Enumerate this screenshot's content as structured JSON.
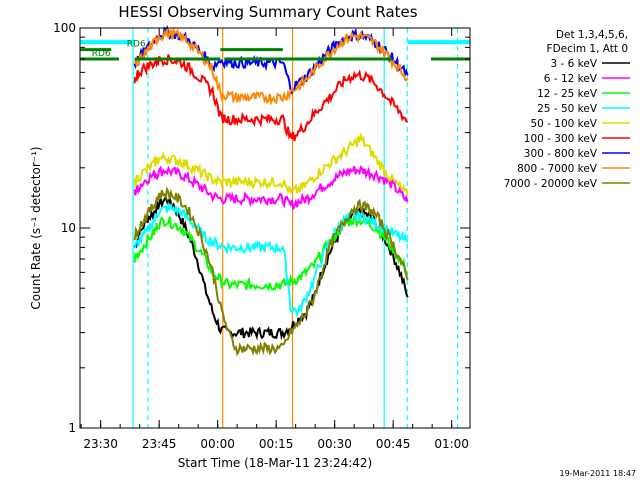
{
  "chart_data": {
    "type": "line",
    "title": "HESSI Observing Summary Count Rates",
    "xlabel": "Start Time (18-Mar-11 23:24:42)",
    "ylabel": "Count Rate (s⁻¹ detector⁻¹)",
    "x_unit": "minutes after 23:24:42",
    "xlim": [
      0,
      100
    ],
    "ylim": [
      1,
      100
    ],
    "y_scale": "log",
    "x_tick_labels": [
      {
        "x": 5.3,
        "label": "23:30"
      },
      {
        "x": 20.3,
        "label": "23:45"
      },
      {
        "x": 35.3,
        "label": "00:00"
      },
      {
        "x": 50.3,
        "label": "00:15"
      },
      {
        "x": 65.3,
        "label": "00:30"
      },
      {
        "x": 80.3,
        "label": "00:45"
      },
      {
        "x": 95.3,
        "label": "01:00"
      }
    ],
    "y_tick_labels": [
      {
        "y": 1,
        "label": "1"
      },
      {
        "y": 10,
        "label": "10"
      },
      {
        "y": 100,
        "label": "100"
      }
    ],
    "legend_header": [
      "Det 1,3,4,5,6,",
      "FDecim 1, Att 0"
    ],
    "legend_position": "right, outside plot",
    "footer_timestamp": "19-Mar-2011 18:47",
    "x_data": [
      14,
      15,
      17,
      19,
      20,
      22,
      24,
      26,
      28,
      30,
      32,
      34,
      36,
      38,
      40,
      42,
      44,
      46,
      48,
      50,
      52,
      54,
      56,
      58,
      60,
      62,
      64,
      66,
      68,
      70,
      72,
      74,
      76,
      78,
      80,
      82,
      84
    ],
    "series": [
      {
        "name": "3 - 6 keV",
        "color": "#000000",
        "y": [
          8,
          9,
          11,
          12,
          13,
          14,
          13,
          11,
          9,
          7,
          5,
          3.8,
          3.1,
          3,
          3,
          3,
          3,
          3,
          3,
          3,
          3,
          3.2,
          3.5,
          3.8,
          4.5,
          6,
          7.5,
          9,
          10.5,
          11.5,
          12,
          11.5,
          10.5,
          9,
          7.5,
          6,
          4.5
        ]
      },
      {
        "name": "6 - 12 keV",
        "color": "#ff00ff",
        "y": [
          15,
          16,
          17.5,
          18.5,
          19,
          19.5,
          19,
          18.5,
          17.5,
          16.5,
          15.5,
          14.5,
          14,
          14,
          14,
          14,
          14,
          14,
          14,
          14,
          14,
          13,
          13.5,
          14,
          15,
          16,
          17,
          18,
          19,
          19.5,
          19.5,
          19,
          18.5,
          17.5,
          16.5,
          15,
          13.5
        ]
      },
      {
        "name": "12 - 25 keV",
        "color": "#00ff00",
        "y": [
          7,
          7.5,
          8.5,
          9.5,
          10.5,
          11,
          10.5,
          10,
          9,
          8,
          7,
          6,
          5.5,
          5.2,
          5.2,
          5.2,
          5.2,
          5.2,
          5.2,
          5.2,
          5.2,
          5.4,
          5.6,
          6,
          6.5,
          7.5,
          8.5,
          9.5,
          10.5,
          11,
          11,
          10.5,
          10,
          9,
          8,
          7,
          6
        ]
      },
      {
        "name": "25 - 50 keV",
        "color": "#00ffff",
        "y": [
          8,
          8.5,
          9.5,
          11,
          12,
          12.5,
          12.5,
          12,
          11,
          10,
          9,
          8.5,
          8.2,
          8,
          8,
          8,
          8,
          8,
          8,
          8,
          8,
          4,
          3.8,
          4.5,
          5.5,
          7,
          8.5,
          10,
          11,
          11.5,
          11.5,
          11,
          10.5,
          10,
          9.5,
          9,
          8.5
        ]
      },
      {
        "name": "50 - 100 keV",
        "color": "#dddd00",
        "y": [
          17,
          18,
          19.5,
          21,
          22,
          22.5,
          22,
          21.5,
          20.5,
          19.5,
          18.5,
          17.5,
          17,
          17,
          17,
          17,
          17,
          17,
          17,
          17,
          17,
          15,
          15.5,
          16.5,
          18,
          19.5,
          21,
          22.5,
          24,
          26,
          28,
          25,
          22,
          19.5,
          17.5,
          16,
          14.5
        ]
      },
      {
        "name": "100 - 300 keV",
        "color": "#ff0000",
        "y": [
          55,
          60,
          64,
          67,
          69,
          70,
          69,
          67,
          63,
          58,
          53,
          48,
          36,
          35,
          35,
          35,
          35,
          35,
          35,
          35,
          35,
          28,
          30,
          33,
          37,
          41,
          45,
          50,
          55,
          58,
          58,
          56,
          52,
          47,
          42,
          38,
          34
        ]
      },
      {
        "name": "300 - 800 keV",
        "color": "#0000ff",
        "y": [
          66,
          70,
          78,
          86,
          92,
          95,
          94,
          91,
          86,
          79,
          72,
          64,
          69,
          68,
          67,
          67,
          67,
          67,
          67,
          67,
          67,
          50,
          53,
          57,
          63,
          70,
          77,
          84,
          89,
          92,
          92,
          89,
          84,
          78,
          71,
          64,
          58
        ]
      },
      {
        "name": "800 - 7000 keV",
        "color": "#ff8800",
        "y": [
          64,
          68,
          76,
          84,
          90,
          94,
          93,
          90,
          85,
          77,
          70,
          62,
          47,
          46,
          45,
          45,
          45,
          45,
          45,
          45,
          45,
          48,
          51,
          55,
          61,
          68,
          75,
          82,
          88,
          91,
          91,
          88,
          83,
          76,
          69,
          62,
          56
        ]
      },
      {
        "name": "7000 - 20000 keV",
        "color": "#808000",
        "y": [
          9,
          10,
          11.5,
          13,
          14.5,
          15,
          14.5,
          13.5,
          12,
          10,
          8,
          6,
          4,
          3,
          2.5,
          2.5,
          2.5,
          2.5,
          2.5,
          2.5,
          2.5,
          3,
          3.3,
          3.8,
          4.5,
          6,
          8,
          9.5,
          11,
          12.5,
          13,
          12.5,
          11.5,
          10,
          8.5,
          7,
          5.5
        ]
      }
    ],
    "annotations": [
      {
        "label": "RD6",
        "y": 70,
        "x_ranges": [
          [
            -8,
            10
          ],
          [
            14,
            36
          ],
          [
            37,
            80
          ],
          [
            90,
            104
          ]
        ],
        "color": "#008000",
        "label_x": 3
      },
      {
        "label": "RD6",
        "y": 78,
        "x_ranges": [
          [
            0,
            8
          ],
          [
            36,
            52
          ]
        ],
        "color": "#008000",
        "label_x": 12
      }
    ],
    "saa_flags": {
      "color": "#00ffff",
      "y": 85,
      "x_ranges": [
        [
          0,
          14
        ],
        [
          84,
          100
        ]
      ]
    },
    "vertical_markers": [
      {
        "x": 13.6,
        "color": "#00ffff",
        "style": "solid"
      },
      {
        "x": 17.4,
        "color": "#00ffff",
        "style": "dashed"
      },
      {
        "x": 78,
        "color": "#00ffff",
        "style": "solid"
      },
      {
        "x": 83.9,
        "color": "#00ffff",
        "style": "dashed"
      },
      {
        "x": 96.8,
        "color": "#00ffff",
        "style": "dashed"
      },
      {
        "x": 36.6,
        "color": "#ff8800",
        "style": "solid"
      },
      {
        "x": 54.5,
        "color": "#ff8800",
        "style": "solid"
      }
    ],
    "grid": false
  }
}
